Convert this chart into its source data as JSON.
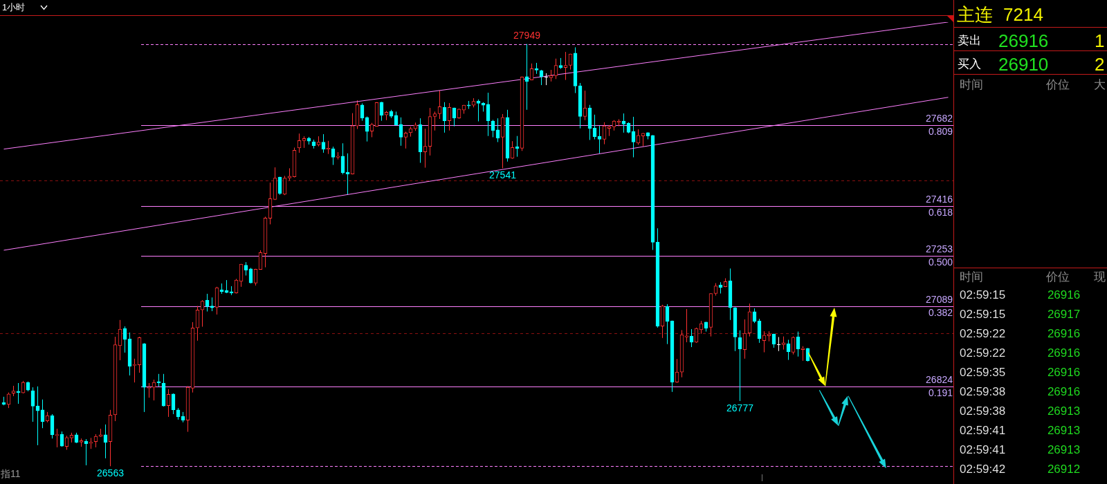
{
  "chart_data": [
    {
      "type": "candlestick",
      "categories": [
        null,
        null,
        null,
        null,
        null,
        null,
        null,
        null,
        null,
        null,
        null,
        null,
        null,
        null,
        null,
        null,
        null,
        null,
        null,
        null,
        null,
        null,
        null,
        null,
        null,
        null,
        null,
        null,
        null,
        null,
        null,
        null,
        null,
        null,
        null,
        null,
        null,
        null,
        null,
        null,
        null,
        null,
        null,
        null,
        null,
        null,
        null,
        null,
        null,
        null,
        null,
        null,
        null,
        null,
        null,
        null,
        null,
        null,
        null,
        null,
        null,
        null,
        null,
        null,
        null,
        null,
        null,
        null,
        null,
        null,
        null,
        null,
        null,
        null,
        null,
        null,
        null,
        null,
        null,
        null,
        null,
        null,
        null,
        null,
        null,
        null,
        null,
        null,
        null,
        null,
        null,
        null,
        null,
        null,
        null,
        null,
        null,
        null,
        null,
        null,
        null,
        null,
        null,
        null,
        null,
        null,
        null,
        null,
        null,
        null,
        null,
        null,
        null,
        null,
        null,
        null,
        null,
        null,
        null,
        null,
        null,
        null,
        null,
        null,
        null,
        null,
        null,
        null,
        null,
        null,
        null,
        null,
        null,
        null,
        null,
        null,
        null,
        null,
        null,
        null,
        null,
        null,
        null,
        null,
        null,
        null,
        null,
        null,
        null,
        null,
        null,
        null,
        null,
        null,
        null,
        null,
        null,
        null,
        null,
        null,
        null,
        null,
        null,
        null,
        null,
        null,
        null,
        null,
        null,
        null,
        null,
        null,
        null,
        null,
        null,
        null,
        null,
        null,
        null,
        null,
        null,
        null,
        null,
        null,
        null,
        null,
        null,
        null,
        null,
        null,
        null,
        null,
        null,
        null,
        null,
        null
      ],
      "ohlc": [
        [
          26772,
          26791,
          26763,
          26766
        ],
        [
          26766,
          26805,
          26754,
          26800
        ],
        [
          26803,
          26827,
          26793,
          26810
        ],
        [
          26809,
          26836,
          26768,
          26805
        ],
        [
          26804,
          26843,
          26802,
          26838
        ],
        [
          26838,
          26841,
          26809,
          26813
        ],
        [
          26811,
          26822,
          26709,
          26760
        ],
        [
          26761,
          26825,
          26632,
          26745
        ],
        [
          26748,
          26782,
          26688,
          26709
        ],
        [
          26712,
          26741,
          26707,
          26729
        ],
        [
          26729,
          26734,
          26654,
          26666
        ],
        [
          26664,
          26686,
          26625,
          26667
        ],
        [
          26668,
          26677,
          26627,
          26629
        ],
        [
          26628,
          26663,
          26617,
          26657
        ],
        [
          26656,
          26673,
          26641,
          26665
        ],
        [
          26666,
          26673,
          26639,
          26641
        ],
        [
          26642,
          26654,
          26627,
          26647
        ],
        [
          26645,
          26652,
          26566,
          26637
        ],
        [
          26638,
          26656,
          26620,
          26642
        ],
        [
          26644,
          26668,
          26625,
          26661
        ],
        [
          26661,
          26686,
          26659,
          26666
        ],
        [
          26666,
          26700,
          26589,
          26641
        ],
        [
          26644,
          26748,
          26563,
          26731
        ],
        [
          26732,
          26988,
          26711,
          26962
        ],
        [
          26959,
          27043,
          26911,
          27013
        ],
        [
          27015,
          27022,
          26936,
          26979
        ],
        [
          26981,
          27002,
          26861,
          26891
        ],
        [
          26894,
          26916,
          26838,
          26897
        ],
        [
          26896,
          26988,
          26870,
          26985
        ],
        [
          26965,
          26967,
          26741,
          26822
        ],
        [
          26819,
          26836,
          26788,
          26822
        ],
        [
          26822,
          26847,
          26779,
          26838
        ],
        [
          26841,
          26866,
          26825,
          26837
        ],
        [
          26836,
          26866,
          26759,
          26761
        ],
        [
          26762,
          26816,
          26725,
          26799
        ],
        [
          26800,
          26802,
          26734,
          26748
        ],
        [
          26748,
          26754,
          26716,
          26725
        ],
        [
          26727,
          26741,
          26707,
          26714
        ],
        [
          26714,
          26826,
          26676,
          26822
        ],
        [
          26819,
          27036,
          26805,
          27017
        ],
        [
          27017,
          27089,
          26975,
          27076
        ],
        [
          27076,
          27108,
          27021,
          27105
        ],
        [
          27108,
          27129,
          27071,
          27087
        ],
        [
          27089,
          27117,
          27072,
          27083
        ],
        [
          27085,
          27152,
          27061,
          27149
        ],
        [
          27142,
          27163,
          27129,
          27136
        ],
        [
          27140,
          27174,
          27131,
          27133
        ],
        [
          27136,
          27154,
          27125,
          27131
        ],
        [
          27132,
          27178,
          27130,
          27174
        ],
        [
          27170,
          27227,
          27152,
          27226
        ],
        [
          27223,
          27233,
          27189,
          27207
        ],
        [
          27211,
          27214,
          27163,
          27165
        ],
        [
          27164,
          27211,
          27156,
          27210
        ],
        [
          27209,
          27272,
          27208,
          27264
        ],
        [
          27261,
          27382,
          27216,
          27378
        ],
        [
          27377,
          27494,
          27357,
          27441
        ],
        [
          27439,
          27544,
          27437,
          27509
        ],
        [
          27512,
          27513,
          27454,
          27458
        ],
        [
          27456,
          27516,
          27453,
          27509
        ],
        [
          27509,
          27541,
          27501,
          27515
        ],
        [
          27513,
          27609,
          27511,
          27600
        ],
        [
          27608,
          27655,
          27592,
          27632
        ],
        [
          27632,
          27646,
          27608,
          27639
        ],
        [
          27640,
          27644,
          27619,
          27630
        ],
        [
          27628,
          27635,
          27606,
          27615
        ],
        [
          27618,
          27646,
          27613,
          27627
        ],
        [
          27627,
          27653,
          27592,
          27604
        ],
        [
          27604,
          27631,
          27588,
          27607
        ],
        [
          27605,
          27612,
          27552,
          27577
        ],
        [
          27577,
          27594,
          27570,
          27581
        ],
        [
          27581,
          27623,
          27521,
          27526
        ],
        [
          27528,
          27590,
          27454,
          27522
        ],
        [
          27522,
          27722,
          27521,
          27681
        ],
        [
          27680,
          27764,
          27670,
          27750
        ],
        [
          27749,
          27754,
          27697,
          27706
        ],
        [
          27708,
          27711,
          27629,
          27662
        ],
        [
          27663,
          27690,
          27643,
          27685
        ],
        [
          27679,
          27758,
          27678,
          27757
        ],
        [
          27758,
          27759,
          27697,
          27715
        ],
        [
          27716,
          27729,
          27699,
          27725
        ],
        [
          27728,
          27733,
          27706,
          27712
        ],
        [
          27715,
          27727,
          27682,
          27683
        ],
        [
          27685,
          27708,
          27615,
          27643
        ],
        [
          27643,
          27661,
          27606,
          27657
        ],
        [
          27658,
          27678,
          27645,
          27671
        ],
        [
          27671,
          27691,
          27664,
          27683
        ],
        [
          27684,
          27705,
          27559,
          27595
        ],
        [
          27595,
          27671,
          27543,
          27613
        ],
        [
          27613,
          27739,
          27583,
          27711
        ],
        [
          27711,
          27727,
          27665,
          27720
        ],
        [
          27720,
          27796,
          27703,
          27743
        ],
        [
          27741,
          27758,
          27658,
          27697
        ],
        [
          27697,
          27755,
          27665,
          27741
        ],
        [
          27739,
          27740,
          27679,
          27706
        ],
        [
          27706,
          27737,
          27704,
          27735
        ],
        [
          27732,
          27749,
          27720,
          27748
        ],
        [
          27749,
          27762,
          27736,
          27746
        ],
        [
          27748,
          27771,
          27741,
          27761
        ],
        [
          27762,
          27767,
          27695,
          27754
        ],
        [
          27755,
          27758,
          27727,
          27748
        ],
        [
          27751,
          27789,
          27647,
          27697
        ],
        [
          27696,
          27700,
          27643,
          27665
        ],
        [
          27667,
          27705,
          27627,
          27640
        ],
        [
          27643,
          27719,
          27541,
          27708
        ],
        [
          27708,
          27733,
          27563,
          27574
        ],
        [
          27574,
          27630,
          27572,
          27609
        ],
        [
          27612,
          27647,
          27579,
          27606
        ],
        [
          27607,
          27842,
          27598,
          27841
        ],
        [
          27842,
          27949,
          27733,
          27826
        ],
        [
          27831,
          27885,
          27830,
          27868
        ],
        [
          27868,
          27887,
          27851,
          27863
        ],
        [
          27862,
          27864,
          27814,
          27841
        ],
        [
          27842,
          27853,
          27814,
          27842
        ],
        [
          27838,
          27864,
          27826,
          27845
        ],
        [
          27845,
          27901,
          27834,
          27879
        ],
        [
          27879,
          27903,
          27867,
          27872
        ],
        [
          27872,
          27923,
          27831,
          27879
        ],
        [
          27879,
          27917,
          27865,
          27916
        ],
        [
          27919,
          27938,
          27788,
          27811
        ],
        [
          27812,
          27821,
          27672,
          27711
        ],
        [
          27711,
          27796,
          27699,
          27739
        ],
        [
          27739,
          27749,
          27634,
          27672
        ],
        [
          27673,
          27717,
          27636,
          27645
        ],
        [
          27646,
          27680,
          27590,
          27636
        ],
        [
          27636,
          27692,
          27620,
          27680
        ],
        [
          27672,
          27683,
          27647,
          27678
        ],
        [
          27677,
          27699,
          27665,
          27696
        ],
        [
          27692,
          27702,
          27679,
          27696
        ],
        [
          27696,
          27721,
          27658,
          27686
        ],
        [
          27689,
          27692,
          27656,
          27659
        ],
        [
          27662,
          27710,
          27577,
          27627
        ],
        [
          27624,
          27669,
          27618,
          27649
        ],
        [
          27647,
          27657,
          27613,
          27656
        ],
        [
          27658,
          27659,
          27636,
          27647
        ],
        [
          27649,
          27650,
          27273,
          27298
        ],
        [
          27299,
          27344,
          27018,
          27023
        ],
        [
          27023,
          27093,
          26984,
          27089
        ],
        [
          27088,
          27095,
          26964,
          27038
        ],
        [
          27040,
          27041,
          26807,
          26839
        ],
        [
          26839,
          26915,
          26837,
          26872
        ],
        [
          26872,
          27010,
          26855,
          26995
        ],
        [
          26987,
          27079,
          26970,
          26991
        ],
        [
          26990,
          27013,
          26954,
          26970
        ],
        [
          26970,
          27018,
          26968,
          27015
        ],
        [
          27011,
          27040,
          26998,
          27031
        ],
        [
          27036,
          27037,
          27005,
          27016
        ],
        [
          27019,
          27131,
          26989,
          27130
        ],
        [
          27130,
          27164,
          27123,
          27155
        ],
        [
          27158,
          27167,
          27130,
          27150
        ],
        [
          27152,
          27180,
          27151,
          27169
        ],
        [
          27172,
          27212,
          27043,
          27084
        ],
        [
          27083,
          27085,
          26941,
          26987
        ],
        [
          26985,
          27009,
          26777,
          26948
        ],
        [
          26946,
          27045,
          26916,
          26999
        ],
        [
          27000,
          27097,
          26989,
          27070
        ],
        [
          27070,
          27081,
          27033,
          27038
        ],
        [
          27040,
          27047,
          26968,
          26982
        ],
        [
          26975,
          27006,
          26937,
          26993
        ],
        [
          26991,
          27006,
          26973,
          26997
        ],
        [
          26997,
          26998,
          26952,
          26964
        ],
        [
          26964,
          26987,
          26941,
          26964
        ],
        [
          26962,
          26989,
          26946,
          26968
        ],
        [
          26965,
          26978,
          26912,
          26939
        ],
        [
          26937,
          26989,
          26930,
          26986
        ],
        [
          26988,
          27005,
          26923,
          26948
        ],
        [
          26946,
          26957,
          26909,
          26950
        ],
        [
          26950,
          26951,
          26907,
          26909
        ],
        null,
        null,
        null,
        null,
        null,
        null,
        null,
        null,
        null,
        null,
        null,
        null,
        null,
        null,
        null,
        null,
        null,
        null,
        null,
        null,
        null,
        null,
        null,
        null,
        null,
        null,
        null,
        null,
        null
      ],
      "colors": [
        "#00ffff",
        "#ff3232",
        "#ff3232",
        "#00ffff",
        "#ff3232",
        "#00ffff",
        "#00ffff",
        "#00ffff",
        "#00ffff",
        "#ff3232",
        "#00ffff",
        "#ff3232",
        "#00ffff",
        "#ff3232",
        "#ff3232",
        "#00ffff",
        "#ff3232",
        "#00ffff",
        "#ff3232",
        "#ff3232",
        "#ff3232",
        "#00ffff",
        "#ff3232",
        "#ff3232",
        "#ff3232",
        "#00ffff",
        "#00ffff",
        "#ff3232",
        "#ff3232",
        "#00ffff",
        "#ff3232",
        "#ff3232",
        "#00ffff",
        "#00ffff",
        "#ff3232",
        "#00ffff",
        "#00ffff",
        "#00ffff",
        "#ff3232",
        "#ff3232",
        "#ff3232",
        "#ff3232",
        "#00ffff",
        "#00ffff",
        "#ff3232",
        "#00ffff",
        "#00ffff",
        "#00ffff",
        "#ff3232",
        "#ff3232",
        "#00ffff",
        "#00ffff",
        "#ff3232",
        "#ff3232",
        "#ff3232",
        "#ff3232",
        "#ff3232",
        "#00ffff",
        "#ff3232",
        "#ff3232",
        "#ff3232",
        "#ff3232",
        "#ff3232",
        "#00ffff",
        "#00ffff",
        "#ff3232",
        "#00ffff",
        "#ff3232",
        "#00ffff",
        "#ff3232",
        "#00ffff",
        "#00ffff",
        "#ff3232",
        "#ff3232",
        "#00ffff",
        "#00ffff",
        "#ff3232",
        "#ff3232",
        "#00ffff",
        "#ff3232",
        "#00ffff",
        "#00ffff",
        "#00ffff",
        "#ff3232",
        "#ff3232",
        "#ff3232",
        "#00ffff",
        "#ff3232",
        "#ff3232",
        "#ff3232",
        "#ff3232",
        "#00ffff",
        "#ff3232",
        "#00ffff",
        "#ff3232",
        "#ff3232",
        "#00ffff",
        "#ff3232",
        "#00ffff",
        "#00ffff",
        "#00ffff",
        "#00ffff",
        "#00ffff",
        "#ff3232",
        "#00ffff",
        "#ff3232",
        "#00ffff",
        "#ff3232",
        "#00ffff",
        "#ff3232",
        "#00ffff",
        "#00ffff",
        "#ffffff",
        "#ff3232",
        "#ff3232",
        "#00ffff",
        "#ff3232",
        "#ff3232",
        "#00ffff",
        "#00ffff",
        "#ff3232",
        "#00ffff",
        "#00ffff",
        "#00ffff",
        "#ff3232",
        "#ff3232",
        "#ff3232",
        "#ff3232",
        "#00ffff",
        "#00ffff",
        "#00ffff",
        "#ff3232",
        "#ff3232",
        "#00ffff",
        "#00ffff",
        "#00ffff",
        "#ff3232",
        "#00ffff",
        "#00ffff",
        "#ff3232",
        "#ff3232",
        "#ff3232",
        "#00ffff",
        "#ff3232",
        "#ff3232",
        "#00ffff",
        "#ff3232",
        "#ff3232",
        "#00ffff",
        "#ff3232",
        "#00ffff",
        "#00ffff",
        "#00ffff",
        "#ff3232",
        "#ff3232",
        "#00ffff",
        "#00ffff",
        "#ff3232",
        "#ff3232",
        "#00ffff",
        "#ffffff",
        "#ff3232",
        "#00ffff",
        "#ff3232",
        "#00ffff",
        "#ff3232",
        "#00ffff",
        null,
        null,
        null,
        null,
        null,
        null,
        null,
        null,
        null,
        null,
        null,
        null,
        null,
        null,
        null,
        null,
        null,
        null,
        null,
        null,
        null,
        null,
        null,
        null,
        null,
        null,
        null,
        null,
        null
      ],
      "series": [
        {
          "type": "line",
          "color": "#ff80ff",
          "values": [
            27604,
            null,
            null,
            null,
            null,
            null,
            null,
            null,
            null,
            null,
            null,
            null,
            null,
            null,
            null,
            null,
            null,
            null,
            null,
            null,
            null,
            null,
            null,
            null,
            null,
            null,
            null,
            null,
            null,
            null,
            null,
            null,
            null,
            null,
            null,
            null,
            null,
            null,
            null,
            null,
            null,
            null,
            null,
            null,
            null,
            null,
            null,
            null,
            null,
            null,
            null,
            null,
            null,
            null,
            null,
            null,
            null,
            null,
            null,
            null,
            null,
            null,
            null,
            null,
            null,
            null,
            null,
            null,
            null,
            null,
            null,
            null,
            null,
            null,
            null,
            null,
            null,
            null,
            null,
            null,
            null,
            null,
            null,
            null,
            null,
            null,
            null,
            null,
            null,
            null,
            null,
            null,
            null,
            null,
            null,
            null,
            null,
            null,
            null,
            null,
            null,
            null,
            null,
            null,
            null,
            null,
            null,
            null,
            null,
            null,
            null,
            null,
            null,
            null,
            null,
            null,
            null,
            null,
            null,
            null,
            null,
            null,
            null,
            null,
            null,
            null,
            null,
            null,
            null,
            null,
            null,
            null,
            null,
            null,
            null,
            null,
            null,
            null,
            null,
            null,
            null,
            null,
            null,
            null,
            null,
            null,
            null,
            null,
            null,
            null,
            null,
            null,
            null,
            null,
            null,
            null,
            null,
            null,
            null,
            null,
            null,
            null,
            null,
            null,
            null,
            null,
            null,
            null,
            null,
            null,
            null,
            null,
            null,
            null,
            null,
            null,
            null,
            null,
            null,
            null,
            null,
            null,
            null,
            null,
            null,
            null,
            null,
            null,
            null,
            null,
            null,
            null,
            null,
            null,
            null,
            28021
          ]
        },
        {
          "type": "line",
          "color": "#ff80ff",
          "values": [
            27272,
            null,
            null,
            null,
            null,
            null,
            null,
            null,
            null,
            null,
            null,
            null,
            null,
            null,
            null,
            null,
            null,
            null,
            null,
            null,
            null,
            null,
            null,
            null,
            null,
            null,
            null,
            null,
            null,
            null,
            null,
            null,
            null,
            null,
            null,
            null,
            null,
            null,
            null,
            null,
            null,
            null,
            null,
            null,
            null,
            null,
            null,
            null,
            null,
            null,
            null,
            null,
            null,
            null,
            null,
            null,
            null,
            null,
            null,
            null,
            null,
            null,
            null,
            null,
            null,
            null,
            null,
            null,
            null,
            null,
            null,
            null,
            null,
            null,
            null,
            null,
            null,
            null,
            null,
            null,
            null,
            null,
            null,
            null,
            null,
            null,
            null,
            null,
            null,
            null,
            null,
            null,
            null,
            null,
            null,
            null,
            null,
            null,
            null,
            null,
            null,
            null,
            null,
            null,
            null,
            null,
            null,
            null,
            null,
            null,
            null,
            null,
            null,
            null,
            null,
            null,
            null,
            null,
            null,
            null,
            null,
            null,
            null,
            null,
            null,
            null,
            null,
            null,
            null,
            null,
            null,
            null,
            null,
            null,
            null,
            null,
            null,
            null,
            null,
            null,
            null,
            null,
            null,
            null,
            null,
            null,
            null,
            null,
            null,
            null,
            null,
            null,
            null,
            null,
            null,
            null,
            null,
            null,
            null,
            null,
            null,
            null,
            null,
            null,
            null,
            null,
            null,
            null,
            null,
            null,
            null,
            null,
            null,
            null,
            null,
            null,
            null,
            null,
            null,
            null,
            null,
            null,
            null,
            null,
            null,
            null,
            null,
            null,
            null,
            null,
            null,
            null,
            null,
            null,
            null,
            27774
          ]
        }
      ],
      "yticks": [
        {
          "value": 27000,
          "label": null
        },
        {
          "value": 27500,
          "label": null
        }
      ],
      "grid": "y",
      "tick_labels": false,
      "ref_lines": [
        {
          "axis": "y",
          "value": 27949,
          "color": "#ff80ff",
          "line_style": "dashed"
        },
        {
          "axis": "y",
          "value": 27682,
          "label": "27682",
          "color": "#ff80ff"
        },
        {
          "axis": "y",
          "value": 27416,
          "label": "27416",
          "color": "#ff80ff"
        },
        {
          "axis": "y",
          "value": 27253,
          "label": "27253",
          "color": "#ff80ff"
        },
        {
          "axis": "y",
          "value": 27089,
          "label": "27089",
          "color": "#ff80ff"
        },
        {
          "axis": "y",
          "value": 26824,
          "label": "26824",
          "color": "#ff80ff"
        },
        {
          "axis": "y",
          "value": 26563,
          "color": "#ff80ff",
          "line_style": "dashed"
        }
      ],
      "annotations": [
        "1小时",
        "指11",
        {
          "text": "0.809",
          "y": 27682
        },
        {
          "text": "0.618",
          "y": 27416
        },
        {
          "text": "0.500",
          "y": 27253
        },
        {
          "text": "0.382",
          "y": 27089
        },
        {
          "text": "0.191",
          "y": 26824
        },
        {
          "text": "27949",
          "y": 27949
        },
        {
          "text": "27541",
          "y": 27541
        },
        {
          "text": "26777",
          "y": 26777
        },
        {
          "text": "26563",
          "y": 26563
        }
      ]
    },
    {
      "type": "other",
      "title": "主连",
      "subtitle": "7214",
      "annotations": [
        "卖出",
        "26916",
        "1",
        "买入",
        "26910",
        "2",
        "时间",
        "价位",
        "大",
        "时间",
        "价位",
        "现",
        "02:59:15 26916",
        "02:59:15 26917",
        "02:59:22 26916",
        "02:59:22 26916",
        "02:59:35 26916",
        "02:59:38 26916",
        "02:59:38 26913",
        "02:59:41 26913",
        "02:59:41 26913",
        "02:59:42 26912"
      ]
    }
  ]
}
